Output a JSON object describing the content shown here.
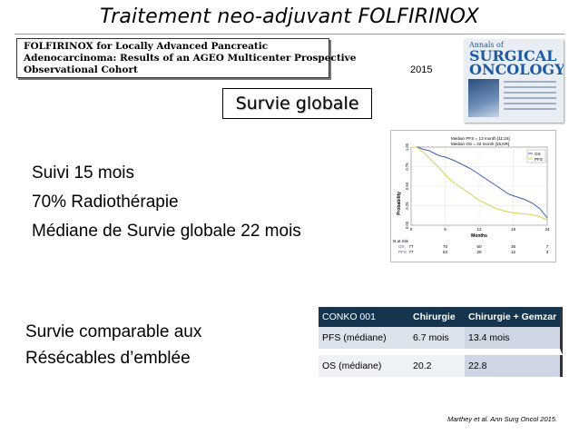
{
  "slide": {
    "title": "Traitement neo-adjuvant FOLFIRINOX",
    "paper_title_lines": [
      "FOLFIRINOX for Locally Advanced Pancreatic",
      "Adenocarcinoma: Results of an AGEO Multicenter Prospective",
      "Observational Cohort"
    ],
    "year": "2015",
    "journal": {
      "line1": "Annals of",
      "line2": "SURGICAL ONCOLOGY"
    },
    "subtitle": "Survie globale",
    "stats": [
      "Suivi 15 mois",
      "70% Radiothérapie",
      "Médiane de Survie globale 22 mois"
    ],
    "comparison_lines": [
      "Survie comparable aux",
      "Résécables d’emblée"
    ],
    "reference": "Marthey et al. Ann Surg Oncol 2015."
  },
  "km_plot": {
    "ylabel": "Probability",
    "xlabel": "Months",
    "x_ticks": [
      "0",
      "6",
      "12",
      "18",
      "24"
    ],
    "y_ticks": [
      "0.00",
      "0.25",
      "0.50",
      "0.75",
      "1.00"
    ],
    "legend": [
      "OS",
      "PFS"
    ],
    "median_text": [
      "Median PFS = 13 month [11:15]",
      "Median OS = 22 month [15,NR]"
    ],
    "at_risk_label": "N at risk",
    "at_risk_rows": [
      {
        "name": "OS",
        "values": [
          "77",
          "70",
          "50",
          "35",
          "7"
        ]
      },
      {
        "name": "PFS",
        "values": [
          "77",
          "53",
          "26",
          "12",
          "3"
        ]
      }
    ],
    "colors": {
      "os": "#3b5fa8",
      "pfs": "#d8d24a"
    }
  },
  "table": {
    "headers": [
      "CONKO 001",
      "Chirurgie",
      "Chirurgie + Gemzar"
    ],
    "rows": [
      [
        "PFS (médiane)",
        "6.7 mois",
        "13.4 mois"
      ],
      [
        "OS (médiane)",
        "20.2",
        "22.8"
      ]
    ]
  }
}
